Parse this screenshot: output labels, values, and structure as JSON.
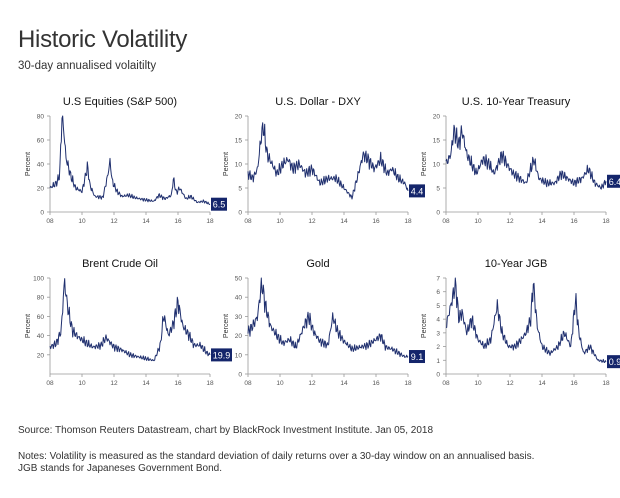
{
  "title": "Historic Volatility",
  "subtitle": "30-day annualised volaitilty",
  "source": "Source: Thomson Reuters Datastream, chart by BlackRock Investment Institute. Jan 05, 2018",
  "notes_line1": "Notes: Volatility is measured as the standard deviation of daily returns over a 30-day window on an annualised basis.",
  "notes_line2": "JGB stands for Japaneses Government Bond.",
  "colors": {
    "line": "#1f2f6e",
    "badge": "#14256b",
    "axis": "#999999"
  },
  "chart_data": [
    {
      "type": "line",
      "title": "U.S Equities (S&P 500)",
      "ylabel": "Percent",
      "ylim": [
        0,
        80
      ],
      "yticks": [
        0,
        20,
        40,
        60,
        80
      ],
      "xlim": [
        2008,
        2018
      ],
      "xticks": [
        "08",
        "10",
        "12",
        "14",
        "16",
        "18"
      ],
      "last_value_label": "6.5",
      "x": [
        2008.0,
        2008.4,
        2008.6,
        2008.75,
        2008.85,
        2009.0,
        2009.3,
        2009.6,
        2010.0,
        2010.35,
        2010.5,
        2010.8,
        2011.3,
        2011.6,
        2011.75,
        2011.9,
        2012.2,
        2012.5,
        2012.9,
        2013.3,
        2013.6,
        2014.0,
        2014.5,
        2014.8,
        2015.2,
        2015.6,
        2015.7,
        2015.9,
        2016.1,
        2016.5,
        2016.8,
        2017.2,
        2017.6,
        2018.0
      ],
      "values": [
        20,
        24,
        30,
        79,
        70,
        45,
        30,
        20,
        17,
        38,
        22,
        13,
        12,
        30,
        42,
        25,
        17,
        13,
        14,
        12,
        11,
        10,
        9,
        14,
        11,
        14,
        28,
        16,
        20,
        11,
        13,
        8,
        9,
        6.5
      ]
    },
    {
      "type": "line",
      "title": "U.S. Dollar - DXY",
      "ylabel": "Percent",
      "ylim": [
        0,
        20
      ],
      "yticks": [
        0,
        5,
        10,
        15,
        20
      ],
      "xlim": [
        2008,
        2018
      ],
      "xticks": [
        "08",
        "10",
        "12",
        "14",
        "16",
        "18"
      ],
      "last_value_label": "4.4",
      "x": [
        2008.0,
        2008.3,
        2008.6,
        2008.8,
        2008.95,
        2009.2,
        2009.5,
        2009.8,
        2010.2,
        2010.5,
        2010.8,
        2011.2,
        2011.6,
        2012.0,
        2012.5,
        2013.0,
        2013.5,
        2014.0,
        2014.5,
        2014.9,
        2015.2,
        2015.5,
        2015.9,
        2016.3,
        2016.7,
        2017.0,
        2017.4,
        2017.8,
        2018.0
      ],
      "values": [
        8,
        7,
        9,
        15,
        18,
        12,
        10,
        8,
        10,
        11,
        9,
        10,
        8,
        9,
        6,
        7,
        7,
        5,
        3,
        8,
        12,
        11,
        9,
        11,
        8,
        9,
        7,
        6,
        4.4
      ]
    },
    {
      "type": "line",
      "title": "U.S. 10-Year Treasury",
      "ylabel": "Percent",
      "ylim": [
        0,
        20
      ],
      "yticks": [
        0,
        5,
        10,
        15,
        20
      ],
      "xlim": [
        2008,
        2018
      ],
      "xticks": [
        "08",
        "10",
        "12",
        "14",
        "16",
        "18"
      ],
      "last_value_label": "6.4",
      "x": [
        2008.0,
        2008.3,
        2008.5,
        2008.8,
        2009.0,
        2009.3,
        2009.6,
        2009.9,
        2010.3,
        2010.7,
        2011.0,
        2011.5,
        2011.8,
        2012.2,
        2012.6,
        2013.0,
        2013.5,
        2013.8,
        2014.3,
        2014.8,
        2015.2,
        2015.6,
        2016.0,
        2016.5,
        2016.9,
        2017.3,
        2017.7,
        2018.0
      ],
      "values": [
        10,
        12,
        17,
        14,
        17,
        12,
        10,
        8,
        11,
        10,
        8,
        12,
        10,
        8,
        7,
        6,
        11,
        7,
        6,
        6,
        8,
        7,
        6,
        7,
        9,
        6,
        5,
        6.4
      ]
    },
    {
      "type": "line",
      "title": "Brent Crude Oil",
      "ylabel": "Percent",
      "ylim": [
        0,
        100
      ],
      "yticks": [
        20,
        40,
        60,
        80,
        100
      ],
      "xlim": [
        2008,
        2018
      ],
      "xticks": [
        "08",
        "10",
        "12",
        "14",
        "16",
        "18"
      ],
      "last_value_label": "19.9",
      "x": [
        2008.0,
        2008.4,
        2008.7,
        2008.9,
        2009.1,
        2009.4,
        2009.8,
        2010.3,
        2010.7,
        2011.2,
        2011.5,
        2012.0,
        2012.5,
        2013.0,
        2013.5,
        2014.0,
        2014.5,
        2014.9,
        2015.1,
        2015.4,
        2015.7,
        2016.0,
        2016.3,
        2016.7,
        2017.0,
        2017.4,
        2017.8,
        2018.0
      ],
      "values": [
        28,
        32,
        45,
        97,
        70,
        45,
        38,
        32,
        28,
        30,
        38,
        28,
        25,
        20,
        18,
        16,
        14,
        30,
        62,
        40,
        52,
        75,
        50,
        40,
        30,
        30,
        22,
        19.9
      ]
    },
    {
      "type": "line",
      "title": "Gold",
      "ylabel": "Percent",
      "ylim": [
        0,
        50
      ],
      "yticks": [
        0,
        10,
        20,
        30,
        40,
        50
      ],
      "xlim": [
        2008,
        2018
      ],
      "xticks": [
        "08",
        "10",
        "12",
        "14",
        "16",
        "18"
      ],
      "last_value_label": "9.1",
      "x": [
        2008.0,
        2008.3,
        2008.6,
        2008.85,
        2009.1,
        2009.4,
        2009.8,
        2010.2,
        2010.6,
        2011.0,
        2011.5,
        2011.8,
        2012.1,
        2012.5,
        2013.0,
        2013.3,
        2013.6,
        2014.0,
        2014.5,
        2015.0,
        2015.5,
        2016.0,
        2016.3,
        2016.6,
        2017.0,
        2017.4,
        2017.8,
        2018.0
      ],
      "values": [
        22,
        25,
        30,
        48,
        35,
        25,
        20,
        16,
        18,
        14,
        25,
        30,
        22,
        17,
        15,
        30,
        22,
        17,
        13,
        14,
        15,
        18,
        20,
        14,
        13,
        11,
        9,
        9.1
      ]
    },
    {
      "type": "line",
      "title": "10-Year JGB",
      "ylabel": "Percent",
      "ylim": [
        0,
        7
      ],
      "yticks": [
        0,
        1,
        2,
        3,
        4,
        5,
        6,
        7
      ],
      "xlim": [
        2008,
        2018
      ],
      "xticks": [
        "08",
        "10",
        "12",
        "14",
        "16",
        "18"
      ],
      "last_value_label": "0.9",
      "x": [
        2008.0,
        2008.3,
        2008.6,
        2008.8,
        2009.0,
        2009.3,
        2009.6,
        2010.0,
        2010.4,
        2010.8,
        2011.2,
        2011.5,
        2011.9,
        2012.3,
        2012.7,
        2013.0,
        2013.3,
        2013.45,
        2013.7,
        2014.0,
        2014.5,
        2015.0,
        2015.4,
        2015.8,
        2016.1,
        2016.3,
        2016.6,
        2017.0,
        2017.5,
        2018.0
      ],
      "values": [
        3.5,
        5,
        6.6,
        4,
        4.5,
        3,
        4,
        2.5,
        2,
        2.5,
        5,
        3,
        2,
        2,
        2.5,
        3,
        4,
        6.7,
        3.5,
        2,
        1.5,
        2,
        3,
        2,
        5.5,
        3,
        1.5,
        2,
        1,
        0.9
      ]
    }
  ]
}
